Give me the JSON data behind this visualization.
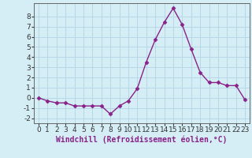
{
  "x": [
    0,
    1,
    2,
    3,
    4,
    5,
    6,
    7,
    8,
    9,
    10,
    11,
    12,
    13,
    14,
    15,
    16,
    17,
    18,
    19,
    20,
    21,
    22,
    23
  ],
  "y": [
    0.0,
    -0.3,
    -0.5,
    -0.5,
    -0.8,
    -0.8,
    -0.8,
    -0.8,
    -1.6,
    -0.8,
    -0.3,
    0.9,
    3.5,
    5.7,
    7.4,
    8.8,
    7.2,
    4.8,
    2.5,
    1.5,
    1.5,
    1.2,
    1.2,
    -0.2
  ],
  "line_color": "#882288",
  "marker": "D",
  "marker_size": 2.5,
  "xlabel": "Windchill (Refroidissement éolien,°C)",
  "xlim": [
    -0.5,
    23.5
  ],
  "ylim": [
    -2.5,
    9.3
  ],
  "yticks": [
    -2,
    -1,
    0,
    1,
    2,
    3,
    4,
    5,
    6,
    7,
    8
  ],
  "xticks": [
    0,
    1,
    2,
    3,
    4,
    5,
    6,
    7,
    8,
    9,
    10,
    11,
    12,
    13,
    14,
    15,
    16,
    17,
    18,
    19,
    20,
    21,
    22,
    23
  ],
  "bg_color": "#d5eef5",
  "grid_color": "#b8d8e8",
  "label_fontsize": 7,
  "tick_fontsize": 6.5,
  "spine_color": "#666666"
}
